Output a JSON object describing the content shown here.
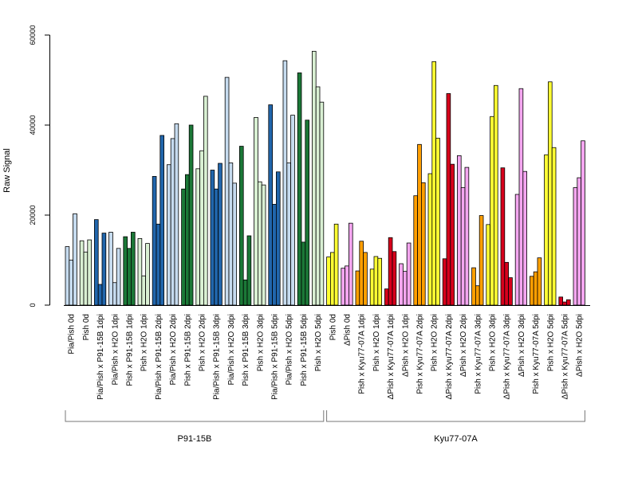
{
  "chart_data": {
    "type": "bar",
    "ylabel": "Raw Signal",
    "ylim": [
      0,
      60000
    ],
    "yticks": [
      0,
      20000,
      40000,
      60000
    ],
    "ytick_labels": [
      "0",
      "20000",
      "40000",
      "60000"
    ],
    "groups": [
      {
        "label": "Pia/Pish 0d",
        "color": "#c6dbef",
        "values": [
          13000,
          10000,
          20300
        ]
      },
      {
        "label": "Pish 0d",
        "color": "#d9f0d3",
        "values": [
          14300,
          11800,
          14500
        ]
      },
      {
        "label": "Pia/Pish x P91-15B 1dpi",
        "color": "#2166ac",
        "values": [
          19000,
          4600,
          16000
        ]
      },
      {
        "label": "Pia/Pish x H2O 1dpi",
        "color": "#c6dbef",
        "values": [
          16200,
          5000,
          12600
        ]
      },
      {
        "label": "Pish x P91-15B 1dpi",
        "color": "#1b7837",
        "values": [
          15200,
          12600,
          16200
        ]
      },
      {
        "label": "Pish x H2O 1dpi",
        "color": "#d9f0d3",
        "values": [
          14800,
          6500,
          13700
        ]
      },
      {
        "label": "Pia/Pish x P91-15B 2dpi",
        "color": "#2166ac",
        "values": [
          28600,
          18000,
          37700
        ]
      },
      {
        "label": "Pia/Pish x H2O 2dpi",
        "color": "#c6dbef",
        "values": [
          31200,
          37000,
          40300
        ]
      },
      {
        "label": "Pish x P91-15B 2dpi",
        "color": "#1b7837",
        "values": [
          25800,
          29000,
          40000
        ]
      },
      {
        "label": "Pish x H2O 2dpi",
        "color": "#d9f0d3",
        "values": [
          30300,
          34300,
          46400
        ]
      },
      {
        "label": "Pia/Pish x P91-15B 3dpi",
        "color": "#2166ac",
        "values": [
          30000,
          25800,
          31500
        ]
      },
      {
        "label": "Pia/Pish x H2O 3dpi",
        "color": "#c6dbef",
        "values": [
          50600,
          31600,
          27100
        ]
      },
      {
        "label": "Pish x P91-15B 3dpi",
        "color": "#1b7837",
        "values": [
          35300,
          5600,
          15400
        ]
      },
      {
        "label": "Pish x H2O 3dpi",
        "color": "#d9f0d3",
        "values": [
          41700,
          27400,
          26700
        ]
      },
      {
        "label": "Pia/Pish x P91-15B 5dpi",
        "color": "#2166ac",
        "values": [
          44500,
          22400,
          29600
        ]
      },
      {
        "label": "Pia/Pish x H2O 5dpi",
        "color": "#c6dbef",
        "values": [
          54300,
          31600,
          42200
        ]
      },
      {
        "label": "Pish x P91-15B 5dpi",
        "color": "#1b7837",
        "values": [
          51600,
          14000,
          41100
        ]
      },
      {
        "label": "Pish x H2O 5dpi",
        "color": "#d9f0d3",
        "values": [
          56400,
          48500,
          45100
        ]
      },
      {
        "label": "Pish 0d",
        "color": "#ffff33",
        "values": [
          10700,
          11700,
          18000
        ]
      },
      {
        "label": "ΔPish 0d",
        "color": "#f4a6f0",
        "values": [
          8200,
          8700,
          18200
        ]
      },
      {
        "label": "Pish x Kyu77-07A 1dpi",
        "color": "#ff9f00",
        "values": [
          7600,
          14200,
          11700
        ]
      },
      {
        "label": "Pish x H2O 1dpi",
        "color": "#ffff33",
        "values": [
          8000,
          10800,
          10400
        ]
      },
      {
        "label": "ΔPish x Kyu77-07A 1dpi",
        "color": "#d7001c",
        "values": [
          3600,
          15000,
          11900
        ]
      },
      {
        "label": "ΔPish x H2O 1dpi",
        "color": "#f4a6f0",
        "values": [
          9200,
          7500,
          13800
        ]
      },
      {
        "label": "Pish x Kyu77-07A 2dpi",
        "color": "#ff9f00",
        "values": [
          24300,
          35700,
          27200
        ]
      },
      {
        "label": "Pish x H2O 2dpi",
        "color": "#ffff33",
        "values": [
          29200,
          54100,
          37100
        ]
      },
      {
        "label": "ΔPish x Kyu77-07A 2dpi",
        "color": "#d7001c",
        "values": [
          10300,
          47000,
          31300
        ]
      },
      {
        "label": "ΔPish x H2O 2dpi",
        "color": "#f4a6f0",
        "values": [
          33200,
          26100,
          30600
        ]
      },
      {
        "label": "Pish x Kyu77-07A 3dpi",
        "color": "#ff9f00",
        "values": [
          8300,
          4300,
          19900
        ]
      },
      {
        "label": "Pish x H2O 3dpi",
        "color": "#ffff33",
        "values": [
          17900,
          41900,
          48800
        ]
      },
      {
        "label": "ΔPish x Kyu77-07A 3dpi",
        "color": "#d7001c",
        "values": [
          30500,
          9500,
          6100
        ]
      },
      {
        "label": "ΔPish x H2O 3dpi",
        "color": "#f4a6f0",
        "values": [
          24600,
          48100,
          29700
        ]
      },
      {
        "label": "Pish x Kyu77-07A 5dpi",
        "color": "#ff9f00",
        "values": [
          6400,
          7400,
          10500
        ]
      },
      {
        "label": "Pish x H2O 5dpi",
        "color": "#ffff33",
        "values": [
          33400,
          49600,
          35000
        ]
      },
      {
        "label": "ΔPish x Kyu77-07A 5dpi",
        "color": "#d7001c",
        "values": [
          1800,
          700,
          1200
        ]
      },
      {
        "label": "ΔPish x H2O 5dpi",
        "color": "#f4a6f0",
        "values": [
          26100,
          28300,
          36500
        ]
      }
    ],
    "brackets": [
      {
        "label": "P91-15B",
        "from_group": 0,
        "to_group": 17
      },
      {
        "label": "Kyu77-07A",
        "from_group": 18,
        "to_group": 35
      }
    ]
  }
}
